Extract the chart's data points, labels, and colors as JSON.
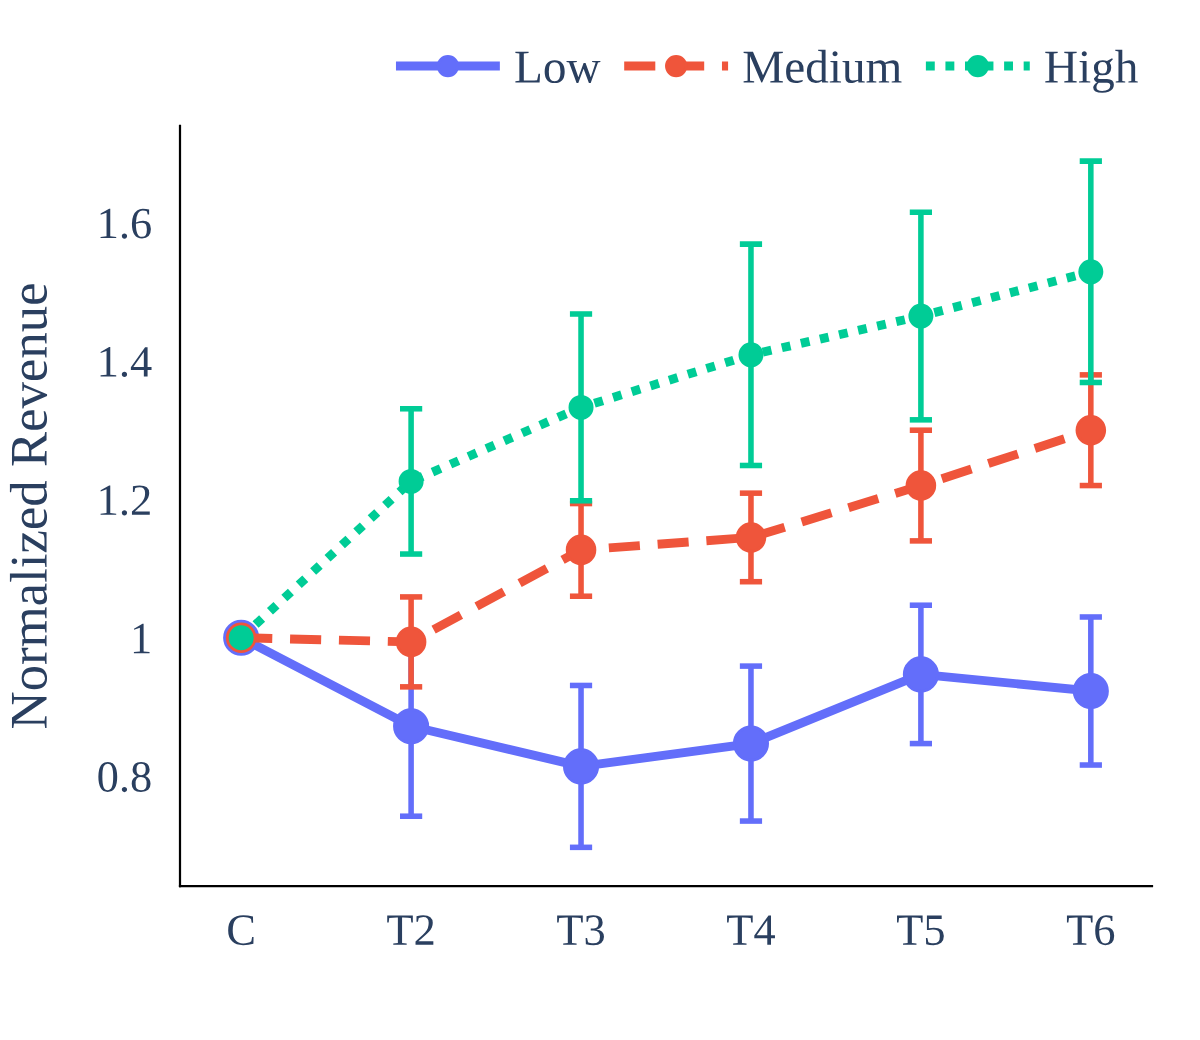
{
  "chart_data": {
    "type": "line",
    "ylabel": "Normalized Revenue",
    "categories": [
      "C",
      "T2",
      "T3",
      "T4",
      "T5",
      "T6"
    ],
    "series": [
      {
        "name": "Low",
        "color": "#636efa",
        "line_style": "solid",
        "values": [
          1.0,
          0.872,
          0.814,
          0.847,
          0.947,
          0.923
        ],
        "errors": [
          null,
          0.13,
          0.117,
          0.112,
          0.1,
          0.107
        ]
      },
      {
        "name": "Medium",
        "color": "#ef553b",
        "line_style": "dashed",
        "values": [
          1.0,
          0.994,
          1.127,
          1.145,
          1.22,
          1.3
        ],
        "errors": [
          null,
          0.065,
          0.067,
          0.064,
          0.08,
          0.08
        ]
      },
      {
        "name": "High",
        "color": "#00cc96",
        "line_style": "dotted",
        "values": [
          1.0,
          1.226,
          1.333,
          1.409,
          1.465,
          1.529
        ],
        "errors": [
          null,
          0.105,
          0.135,
          0.16,
          0.15,
          0.16
        ]
      }
    ],
    "ylim": [
      0.641,
      1.74
    ],
    "yticks": [
      0.8,
      1,
      1.2,
      1.4,
      1.6
    ],
    "marker": "circle",
    "grid": false,
    "legend": "top right"
  }
}
